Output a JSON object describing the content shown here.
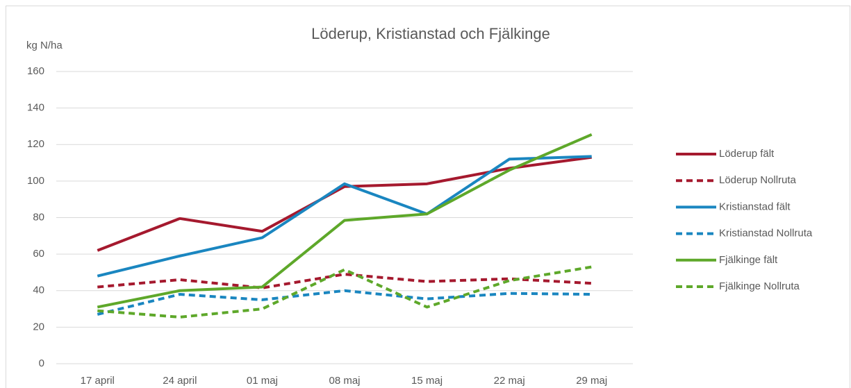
{
  "chart_data": {
    "type": "line",
    "title": "Löderup, Kristianstad och Fjälkinge",
    "ylabel": "kg N/ha",
    "categories": [
      "17 april",
      "24 april",
      "01 maj",
      "08 maj",
      "15 maj",
      "22 maj",
      "29 maj"
    ],
    "ylim": [
      0,
      160
    ],
    "yticks": [
      0,
      20,
      40,
      60,
      80,
      100,
      120,
      140,
      160
    ],
    "grid": true,
    "legend": "right",
    "series": [
      {
        "name": "Löderup fält",
        "color": "#a5192e",
        "dashed": false,
        "values": [
          62,
          79.5,
          72.5,
          97,
          98.5,
          107,
          113
        ]
      },
      {
        "name": "Löderup Nollruta",
        "color": "#a5192e",
        "dashed": true,
        "values": [
          42,
          46,
          41.5,
          49,
          45,
          46.5,
          44
        ]
      },
      {
        "name": "Kristianstad fält",
        "color": "#1a86c0",
        "dashed": false,
        "values": [
          48,
          59,
          69,
          98.5,
          82,
          112,
          113.5
        ]
      },
      {
        "name": "Kristianstad Nollruta",
        "color": "#1a86c0",
        "dashed": true,
        "values": [
          27,
          38,
          35,
          40,
          35.5,
          38.5,
          38
        ]
      },
      {
        "name": "Fjälkinge fält",
        "color": "#5ea82a",
        "dashed": false,
        "values": [
          31,
          40,
          42,
          78.5,
          82,
          106,
          125.5
        ]
      },
      {
        "name": "Fjälkinge Nollruta",
        "color": "#5ea82a",
        "dashed": true,
        "values": [
          29,
          25.5,
          30,
          51.5,
          31,
          45.5,
          53
        ]
      }
    ]
  }
}
